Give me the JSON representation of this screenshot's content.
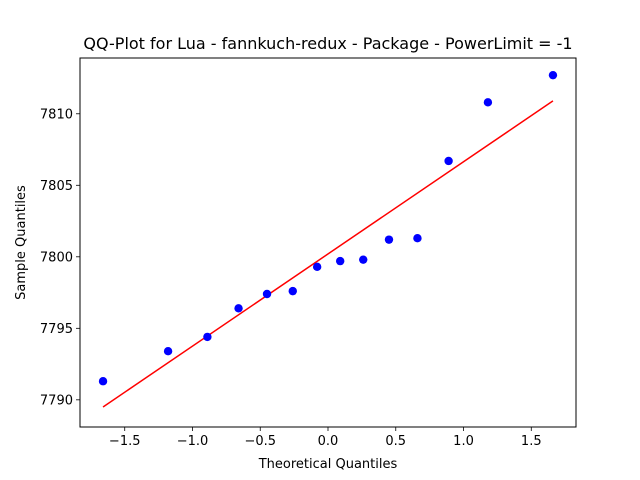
{
  "chart_data": {
    "type": "scatter",
    "title": "QQ-Plot for Lua - fannkuch-redux - Package - PowerLimit = -1",
    "xlabel": "Theoretical Quantiles",
    "ylabel": "Sample Quantiles",
    "xlim": [
      -1.83,
      1.83
    ],
    "ylim": [
      7788.1,
      7813.9
    ],
    "xticks": [
      -1.5,
      -1.0,
      -0.5,
      0.0,
      0.5,
      1.0,
      1.5
    ],
    "xtick_labels": [
      "−1.5",
      "−1.0",
      "−0.5",
      "0.0",
      "0.5",
      "1.0",
      "1.5"
    ],
    "yticks": [
      7790,
      7795,
      7800,
      7805,
      7810
    ],
    "ytick_labels": [
      "7790",
      "7795",
      "7800",
      "7805",
      "7810"
    ],
    "grid": false,
    "series": [
      {
        "kind": "points",
        "color": "#0000ff",
        "x": [
          -1.66,
          -1.18,
          -0.89,
          -0.66,
          -0.45,
          -0.26,
          -0.08,
          0.09,
          0.26,
          0.45,
          0.66,
          0.89,
          1.18,
          1.66
        ],
        "y": [
          7791.3,
          7793.4,
          7794.4,
          7796.4,
          7797.4,
          7797.6,
          7799.3,
          7799.7,
          7799.8,
          7801.2,
          7801.3,
          7806.7,
          7810.8,
          7812.7
        ]
      },
      {
        "kind": "fit-line",
        "color": "#ff0000",
        "x": [
          -1.66,
          1.66
        ],
        "y": [
          7789.5,
          7810.9
        ]
      }
    ]
  }
}
